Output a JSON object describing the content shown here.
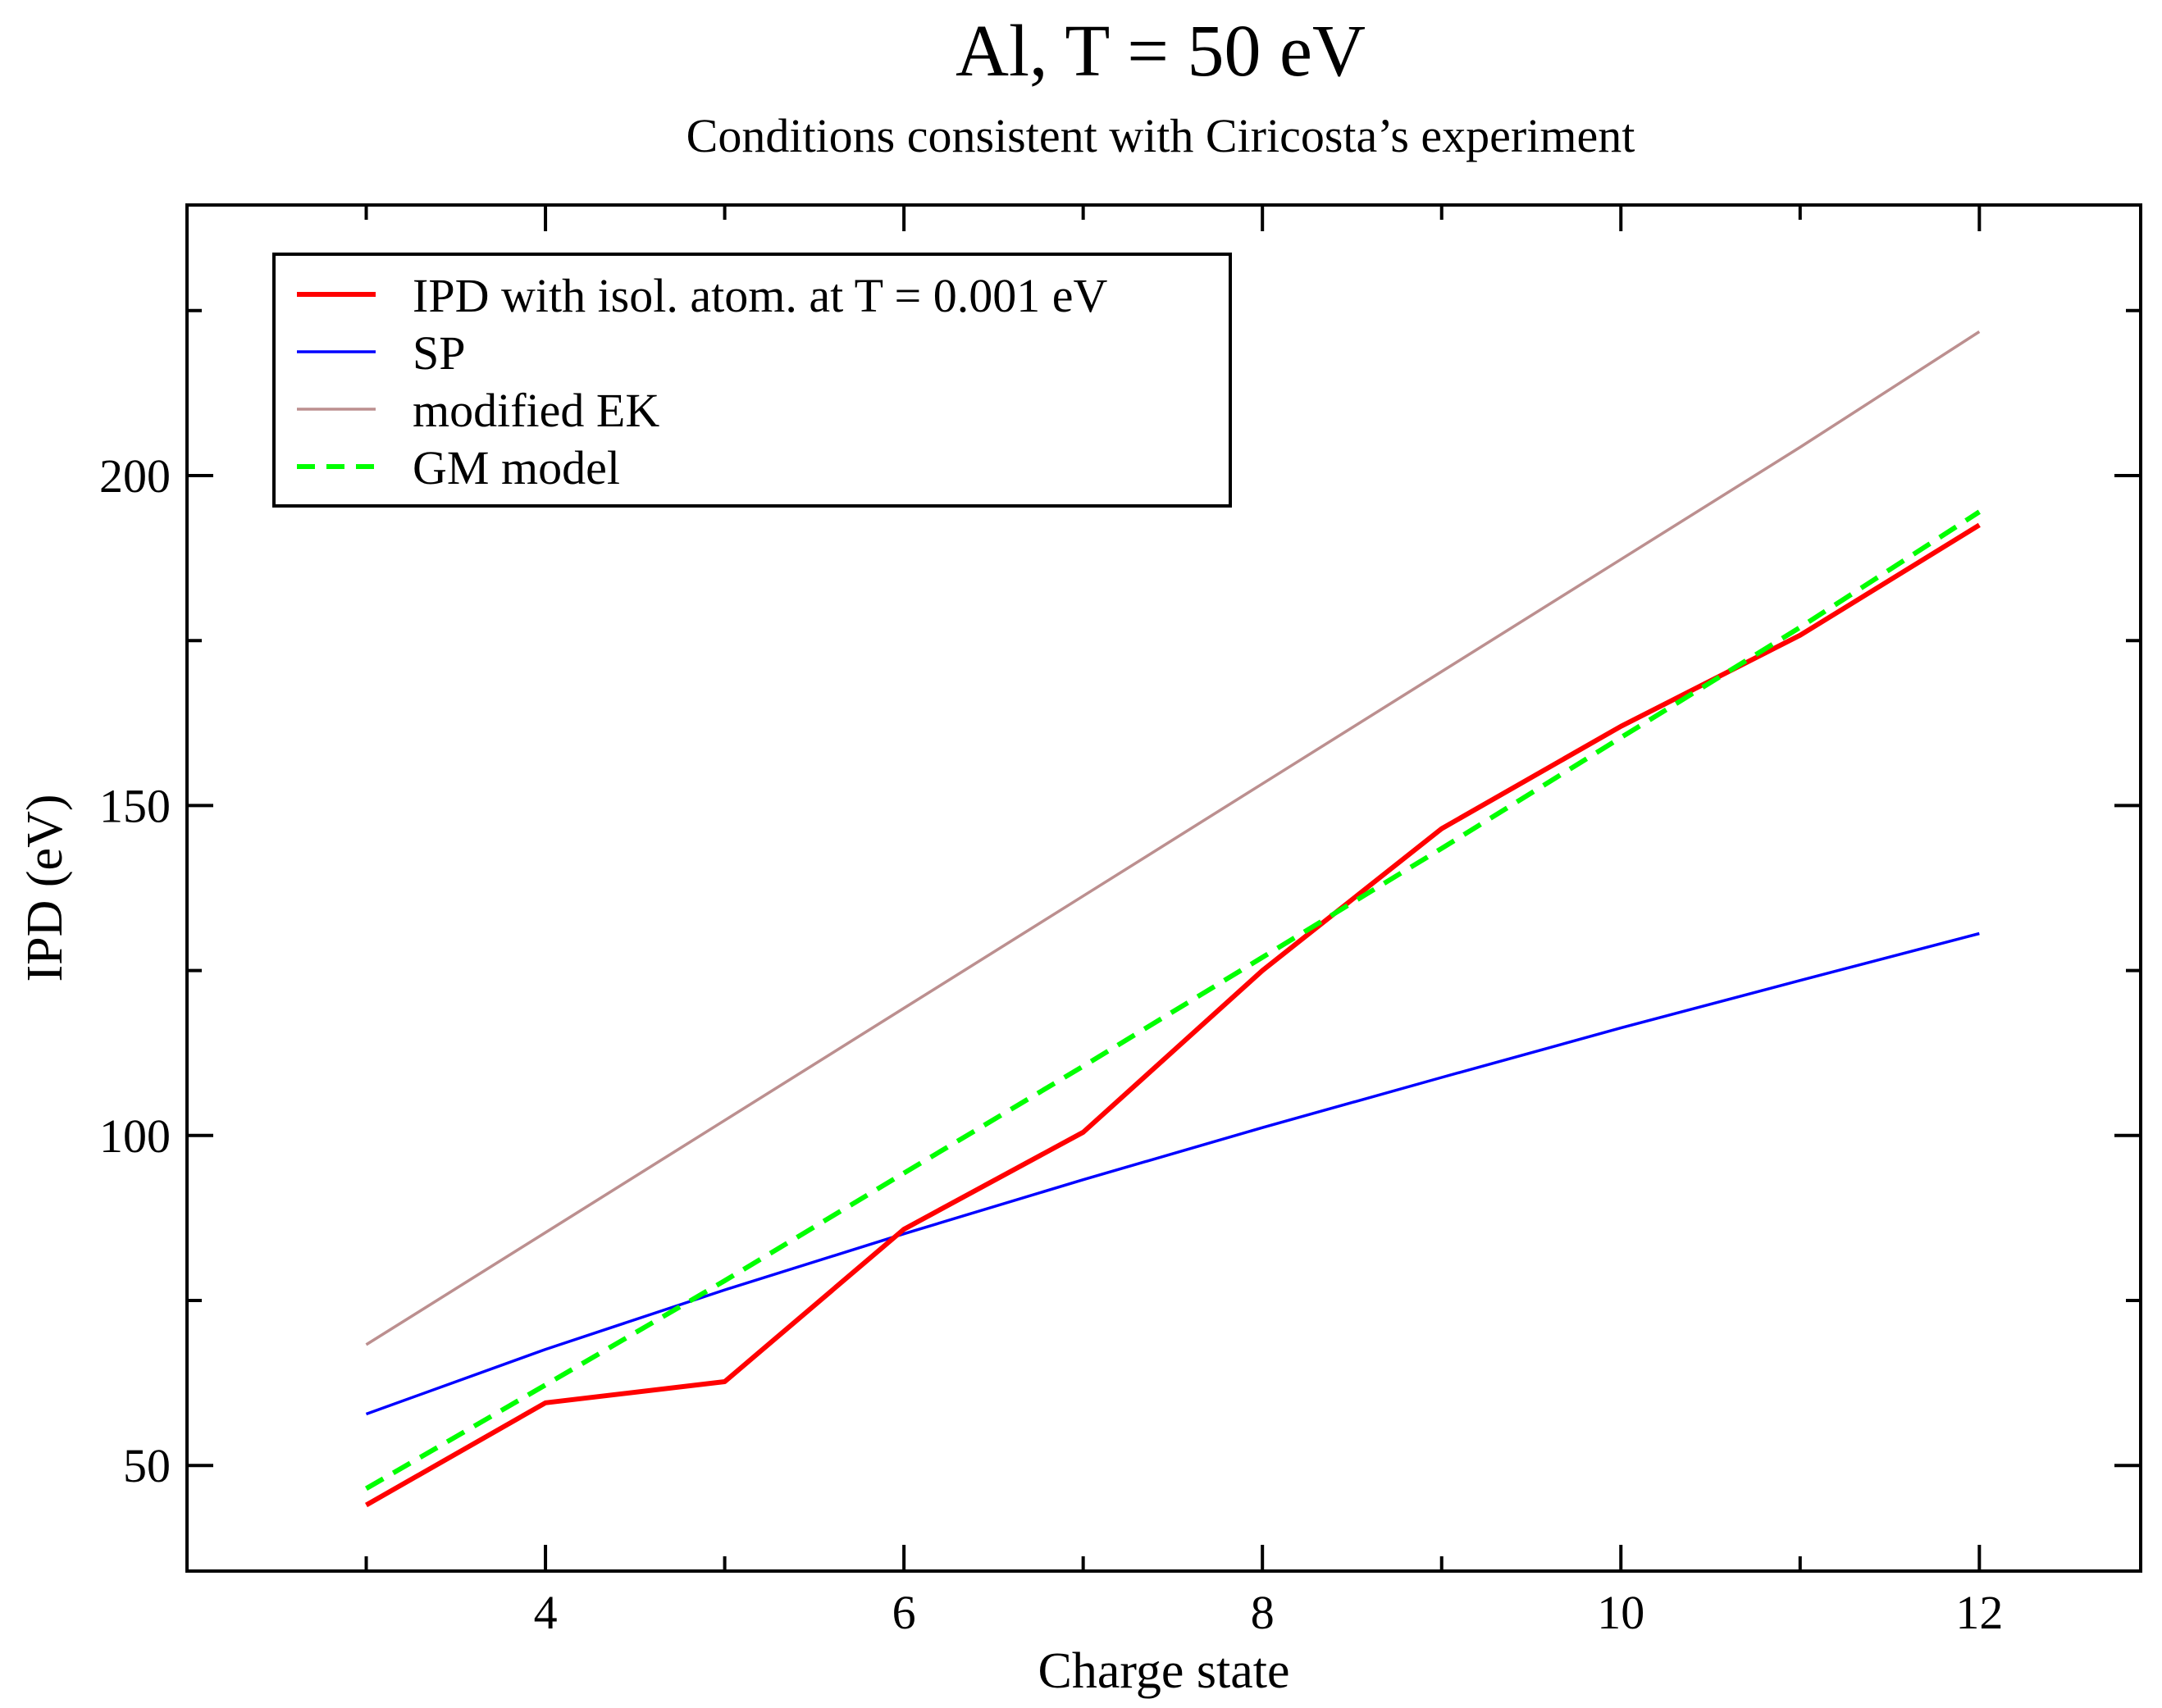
{
  "chart_data": {
    "type": "line",
    "title": "Al, T = 50 eV",
    "subtitle": "Conditions consistent with Ciricosta’s experiment",
    "xlabel": "Charge state",
    "ylabel": "IPD (eV)",
    "xlim": [
      2.0,
      12.9
    ],
    "ylim": [
      34,
      241
    ],
    "x_ticks": [
      4,
      6,
      8,
      10,
      12
    ],
    "y_ticks": [
      50,
      100,
      150,
      200
    ],
    "x_minor_ticks": [
      3,
      5,
      7,
      9,
      11
    ],
    "y_minor_ticks": [
      75,
      125,
      175,
      225
    ],
    "legend_position": "top-left",
    "series": [
      {
        "name": "IPD with isol. atom. at T = 0.001 eV",
        "color": "#ff0000",
        "style": "solid-thick",
        "x": [
          3,
          4,
          5,
          6,
          7,
          8,
          9,
          10,
          11,
          12
        ],
        "y": [
          44,
          59.5,
          62.7,
          85.8,
          100.5,
          125,
          146.5,
          162,
          175.8,
          192.5
        ]
      },
      {
        "name": "SP",
        "color": "#0000ff",
        "style": "solid-thin",
        "x": [
          3,
          4,
          5,
          6,
          7,
          8,
          9,
          10,
          11,
          12
        ],
        "y": [
          57.8,
          67.6,
          76.6,
          85.1,
          93.3,
          101.2,
          108.8,
          116.3,
          123.5,
          130.6
        ]
      },
      {
        "name": "modified EK",
        "color": "#bc8f8f",
        "style": "solid-thin",
        "x": [
          3,
          4,
          5,
          6,
          7,
          8,
          9,
          10,
          11,
          12
        ],
        "y": [
          68.3,
          85.3,
          102.3,
          119.3,
          136.3,
          153.3,
          170.3,
          187.3,
          204.3,
          221.8
        ]
      },
      {
        "name": "GM model",
        "color": "#00ff00",
        "style": "dashed-thick",
        "x": [
          3,
          4,
          5,
          6,
          7,
          8,
          9,
          10,
          11,
          12
        ],
        "y": [
          46.5,
          62.2,
          78,
          94.3,
          110.5,
          127,
          143.5,
          160.3,
          177,
          194.5
        ]
      }
    ]
  }
}
